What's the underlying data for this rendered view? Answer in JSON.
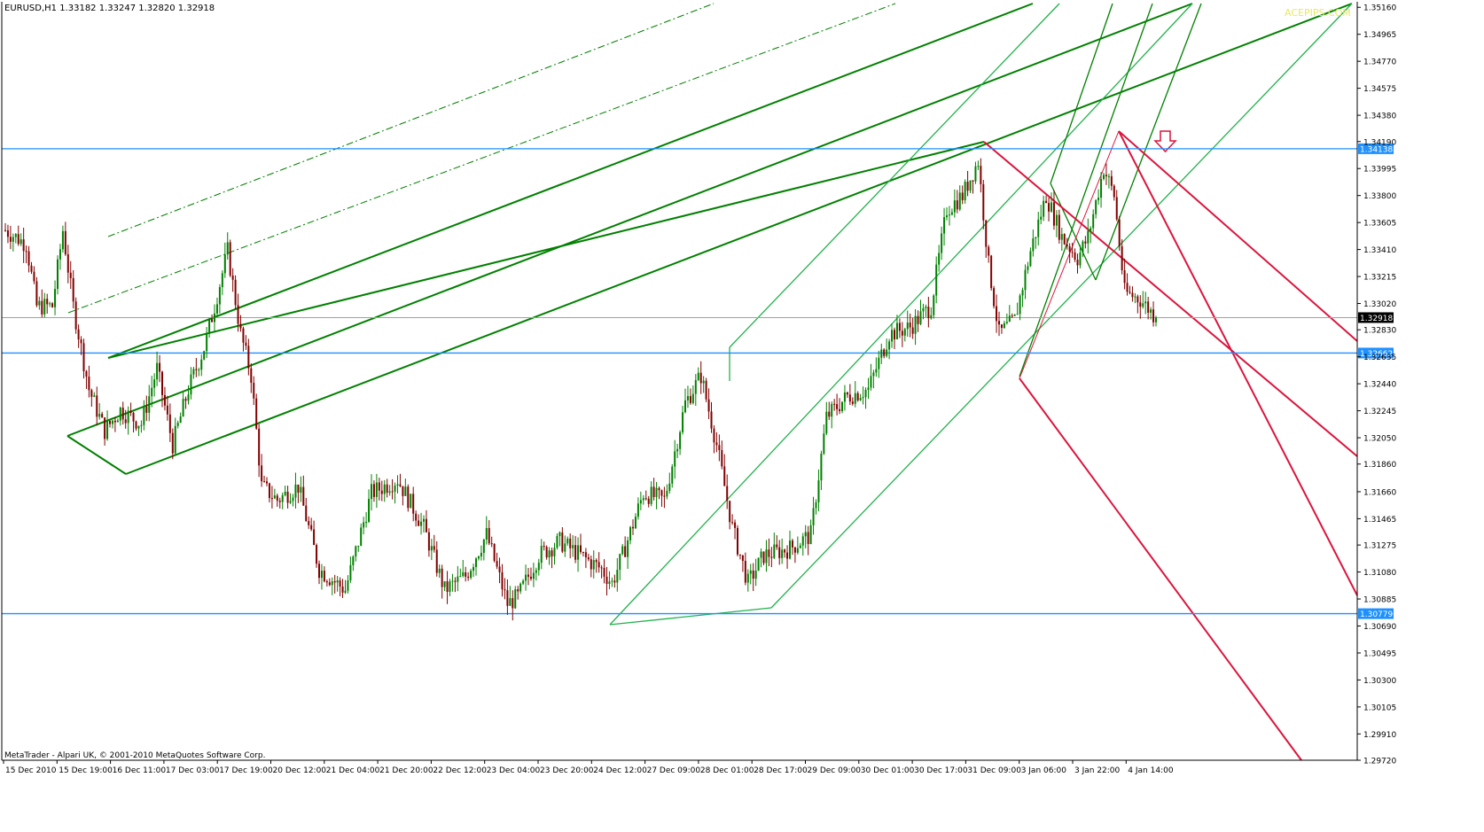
{
  "header": {
    "symbol_info": "EURUSD,H1  1.33182 1.33247 1.32820 1.32918"
  },
  "footer": {
    "copyright": "MetaTrader - Alpari UK, © 2001-2010 MetaQuotes Software Corp."
  },
  "watermark": "ACEPIPS.COM",
  "colors": {
    "background": "#ffffff",
    "bull_candle": "#008000",
    "bear_candle": "#800000",
    "level_line": "#1e90ff",
    "pitchfork_green": "#008000",
    "pitchfork_light_green": "#22b14c",
    "pitchfork_red": "#dc143c",
    "bid_line": "#a0a0a0",
    "arrow": "#dc143c"
  },
  "chart_data": {
    "type": "candlestick",
    "symbol": "EURUSD",
    "timeframe": "H1",
    "ylim": [
      1.2972,
      1.352
    ],
    "price_ticks": [
      "1.35160",
      "1.34965",
      "1.34770",
      "1.34575",
      "1.34380",
      "1.34190",
      "1.33995",
      "1.33800",
      "1.33605",
      "1.33410",
      "1.33215",
      "1.33020",
      "1.32830",
      "1.32635",
      "1.32440",
      "1.32245",
      "1.32050",
      "1.31860",
      "1.31660",
      "1.31465",
      "1.31275",
      "1.31080",
      "1.30885",
      "1.30690",
      "1.30495",
      "1.30300",
      "1.30105",
      "1.29910",
      "1.29720"
    ],
    "time_labels": [
      "15 Dec 2010",
      "15 Dec 19:00",
      "16 Dec 11:00",
      "17 Dec 03:00",
      "17 Dec 19:00",
      "20 Dec 12:00",
      "21 Dec 04:00",
      "21 Dec 20:00",
      "22 Dec 12:00",
      "23 Dec 04:00",
      "23 Dec 20:00",
      "24 Dec 12:00",
      "27 Dec 09:00",
      "28 Dec 01:00",
      "28 Dec 17:00",
      "29 Dec 09:00",
      "30 Dec 01:00",
      "30 Dec 17:00",
      "31 Dec 09:00",
      "3 Jan 06:00",
      "3 Jan 22:00",
      "4 Jan 14:00"
    ],
    "horizontal_levels": [
      {
        "price": 1.34138,
        "label": "1.34138"
      },
      {
        "price": 1.32662,
        "label": "1.32662"
      },
      {
        "price": 1.30779,
        "label": "1.30779"
      }
    ],
    "bid": {
      "price": 1.32918,
      "label": "1.32918"
    },
    "ohlc_last": {
      "open": 1.33182,
      "high": 1.33247,
      "low": 1.3282,
      "close": 1.32918
    },
    "price_anchors": [
      {
        "t": 0,
        "p": 1.3355
      },
      {
        "t": 8,
        "p": 1.3345
      },
      {
        "t": 12,
        "p": 1.33
      },
      {
        "t": 18,
        "p": 1.33
      },
      {
        "t": 22,
        "p": 1.3355
      },
      {
        "t": 26,
        "p": 1.33
      },
      {
        "t": 32,
        "p": 1.324
      },
      {
        "t": 38,
        "p": 1.321
      },
      {
        "t": 44,
        "p": 1.3225
      },
      {
        "t": 52,
        "p": 1.3215
      },
      {
        "t": 58,
        "p": 1.3255
      },
      {
        "t": 64,
        "p": 1.32
      },
      {
        "t": 70,
        "p": 1.324
      },
      {
        "t": 76,
        "p": 1.327
      },
      {
        "t": 80,
        "p": 1.33
      },
      {
        "t": 85,
        "p": 1.334
      },
      {
        "t": 90,
        "p": 1.328
      },
      {
        "t": 94,
        "p": 1.325
      },
      {
        "t": 98,
        "p": 1.317
      },
      {
        "t": 104,
        "p": 1.316
      },
      {
        "t": 112,
        "p": 1.317
      },
      {
        "t": 120,
        "p": 1.311
      },
      {
        "t": 130,
        "p": 1.3095
      },
      {
        "t": 140,
        "p": 1.3165
      },
      {
        "t": 150,
        "p": 1.3175
      },
      {
        "t": 160,
        "p": 1.314
      },
      {
        "t": 168,
        "p": 1.3095
      },
      {
        "t": 176,
        "p": 1.3105
      },
      {
        "t": 184,
        "p": 1.3135
      },
      {
        "t": 192,
        "p": 1.3085
      },
      {
        "t": 196,
        "p": 1.309
      },
      {
        "t": 204,
        "p": 1.312
      },
      {
        "t": 212,
        "p": 1.313
      },
      {
        "t": 220,
        "p": 1.312
      },
      {
        "t": 228,
        "p": 1.311
      },
      {
        "t": 232,
        "p": 1.31
      },
      {
        "t": 236,
        "p": 1.312
      },
      {
        "t": 244,
        "p": 1.3165
      },
      {
        "t": 252,
        "p": 1.316
      },
      {
        "t": 260,
        "p": 1.323
      },
      {
        "t": 266,
        "p": 1.325
      },
      {
        "t": 272,
        "p": 1.32
      },
      {
        "t": 278,
        "p": 1.314
      },
      {
        "t": 284,
        "p": 1.31
      },
      {
        "t": 290,
        "p": 1.312
      },
      {
        "t": 300,
        "p": 1.3125
      },
      {
        "t": 308,
        "p": 1.3135
      },
      {
        "t": 314,
        "p": 1.322
      },
      {
        "t": 322,
        "p": 1.3235
      },
      {
        "t": 330,
        "p": 1.324
      },
      {
        "t": 338,
        "p": 1.328
      },
      {
        "t": 346,
        "p": 1.3285
      },
      {
        "t": 354,
        "p": 1.33
      },
      {
        "t": 360,
        "p": 1.337
      },
      {
        "t": 366,
        "p": 1.338
      },
      {
        "t": 372,
        "p": 1.3405
      },
      {
        "t": 376,
        "p": 1.333
      },
      {
        "t": 380,
        "p": 1.328
      },
      {
        "t": 386,
        "p": 1.329
      },
      {
        "t": 392,
        "p": 1.334
      },
      {
        "t": 398,
        "p": 1.338
      },
      {
        "t": 404,
        "p": 1.335
      },
      {
        "t": 410,
        "p": 1.3335
      },
      {
        "t": 414,
        "p": 1.335
      },
      {
        "t": 420,
        "p": 1.34
      },
      {
        "t": 424,
        "p": 1.338
      },
      {
        "t": 428,
        "p": 1.331
      },
      {
        "t": 434,
        "p": 1.3305
      },
      {
        "t": 440,
        "p": 1.3292
      }
    ],
    "pitchforks": [
      {
        "name": "Andrews pitchfork 1 (dark green)",
        "color": "pitchfork_green"
      },
      {
        "name": "Andrews pitchfork 2 (light green)",
        "color": "pitchfork_light_green"
      },
      {
        "name": "Andrews pitchfork 3 (red, down)",
        "color": "pitchfork_red"
      }
    ]
  }
}
